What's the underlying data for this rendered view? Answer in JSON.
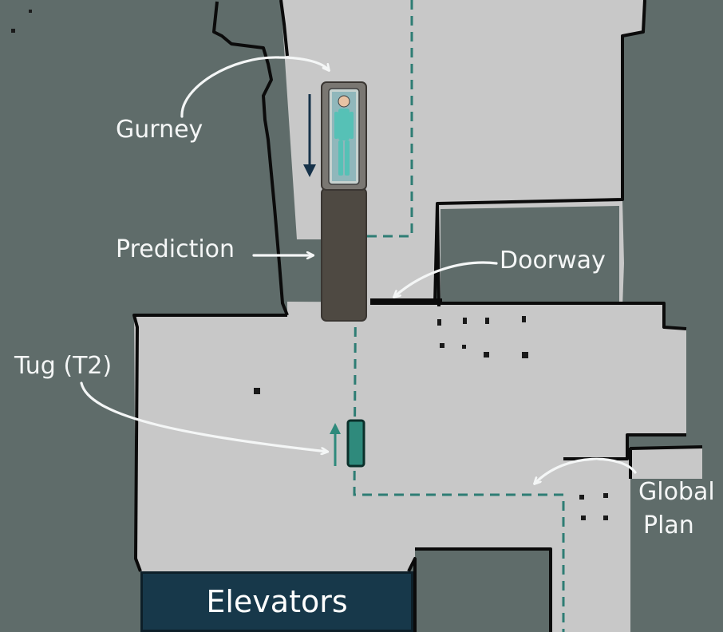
{
  "labels": {
    "gurney": "Gurney",
    "prediction": "Prediction",
    "doorway": "Doorway",
    "tug": "Tug (T2)",
    "global_plan_line1": "Global",
    "global_plan_line2": "Plan",
    "elevators": "Elevators"
  },
  "colors": {
    "wall_region": "#5f6c6a",
    "floor": "#c8c8c8",
    "wall_edge": "#0b0b0b",
    "plan_dash": "#2e7d74",
    "tug": "#2f8a7c",
    "prediction_box": "#4e4942",
    "gurney_arrow": "#16324a",
    "elevator_banner": "#17384a",
    "annotation": "#f4f6f6"
  },
  "icons": {
    "gurney": "patient-on-gurney-icon",
    "tug": "tug-robot-icon"
  }
}
